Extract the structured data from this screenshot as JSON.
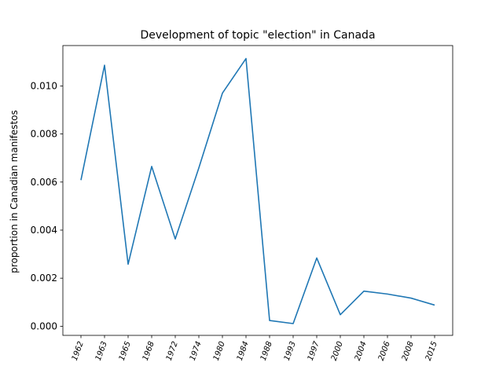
{
  "chart_data": {
    "type": "line",
    "title": "Development of topic \"election\" in Canada",
    "xlabel": "",
    "ylabel": "proportion in Canadian manifestos",
    "categories": [
      "1962",
      "1963",
      "1965",
      "1968",
      "1972",
      "1974",
      "1980",
      "1984",
      "1988",
      "1993",
      "1997",
      "2000",
      "2004",
      "2006",
      "2008",
      "2015"
    ],
    "series": [
      {
        "values": [
          0.00608,
          0.01086,
          0.00258,
          0.00665,
          0.00363,
          0.00659,
          0.0097,
          0.01114,
          0.00024,
          0.00011,
          0.00284,
          0.00048,
          0.00146,
          0.00134,
          0.00117,
          0.00088
        ]
      }
    ],
    "ylim": [
      -0.00038,
      0.01168
    ],
    "yticks": [
      0.0,
      0.002,
      0.004,
      0.006,
      0.008,
      0.01
    ],
    "ytick_labels": [
      "0.000",
      "0.002",
      "0.004",
      "0.006",
      "0.008",
      "0.010"
    ],
    "grid": false,
    "line_color": "#1f77b4"
  }
}
